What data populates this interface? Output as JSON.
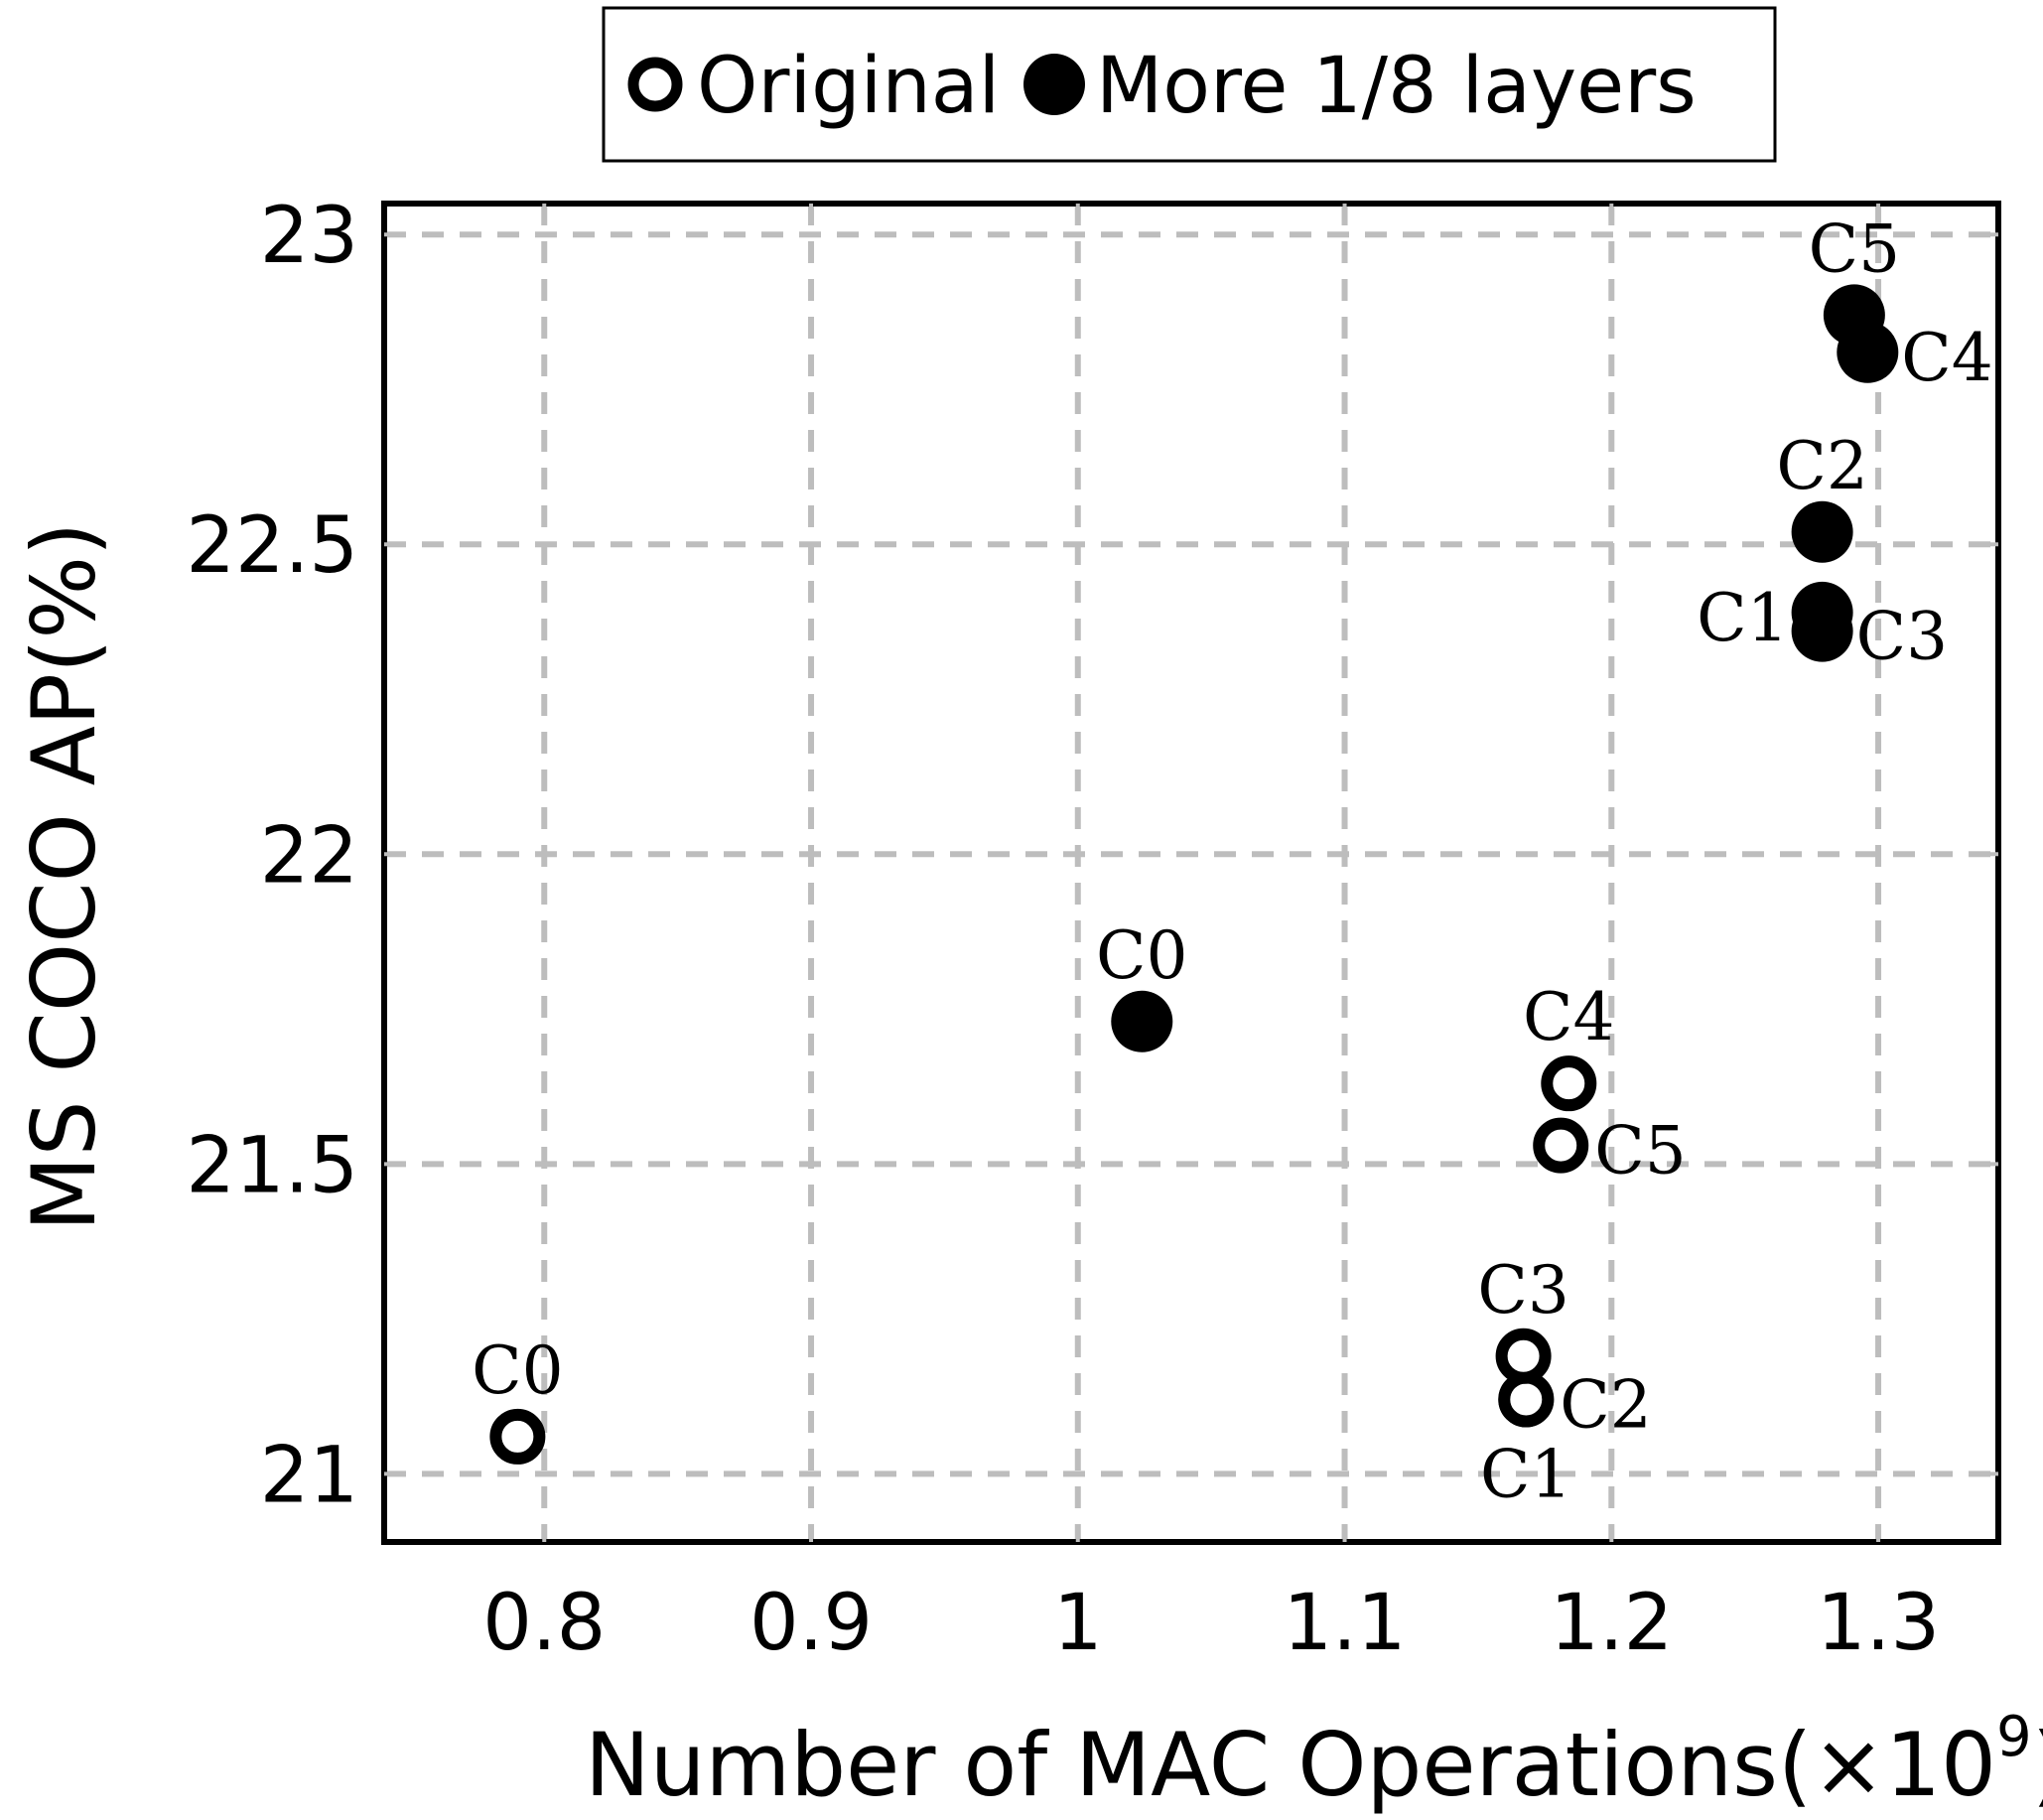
{
  "chart_data": {
    "type": "scatter",
    "xlabel": "Number of MAC Operations(×10",
    "xlabel_exponent": "9",
    "xlabel_close": ")",
    "ylabel": "MS COCO AP(%)",
    "xlim": [
      0.74,
      1.345
    ],
    "ylim": [
      20.89,
      23.05
    ],
    "x_ticks": [
      0.8,
      0.9,
      1.0,
      1.1,
      1.2,
      1.3
    ],
    "x_tick_labels": [
      "0.8",
      "0.9",
      "1",
      "1.1",
      "1.2",
      "1.3"
    ],
    "y_ticks": [
      21,
      21.5,
      22,
      22.5,
      23
    ],
    "y_tick_labels": [
      "21",
      "21.5",
      "22",
      "22.5",
      "23"
    ],
    "grid": true,
    "legend_position": "top-center-outside",
    "series": [
      {
        "name": "Original",
        "marker": "hollow-circle",
        "color": "#000000",
        "points": [
          {
            "label": "C0",
            "x": 0.79,
            "y": 21.06,
            "label_pos": "above"
          },
          {
            "label": "C1",
            "x": 1.168,
            "y": 21.12,
            "label_pos": "below"
          },
          {
            "label": "C2",
            "x": 1.168,
            "y": 21.12,
            "label_pos": "right"
          },
          {
            "label": "C3",
            "x": 1.167,
            "y": 21.19,
            "label_pos": "above"
          },
          {
            "label": "C4",
            "x": 1.184,
            "y": 21.63,
            "label_pos": "above"
          },
          {
            "label": "C5",
            "x": 1.181,
            "y": 21.53,
            "label_pos": "right"
          }
        ]
      },
      {
        "name": "More 1/8 layers",
        "marker": "filled-circle",
        "color": "#000000",
        "points": [
          {
            "label": "C0",
            "x": 1.024,
            "y": 21.73,
            "label_pos": "above"
          },
          {
            "label": "C1",
            "x": 1.279,
            "y": 22.39,
            "label_pos": "left"
          },
          {
            "label": "C2",
            "x": 1.279,
            "y": 22.52,
            "label_pos": "above"
          },
          {
            "label": "C3",
            "x": 1.279,
            "y": 22.36,
            "label_pos": "right"
          },
          {
            "label": "C4",
            "x": 1.296,
            "y": 22.81,
            "label_pos": "right"
          },
          {
            "label": "C5",
            "x": 1.291,
            "y": 22.87,
            "label_pos": "above"
          }
        ]
      }
    ]
  }
}
